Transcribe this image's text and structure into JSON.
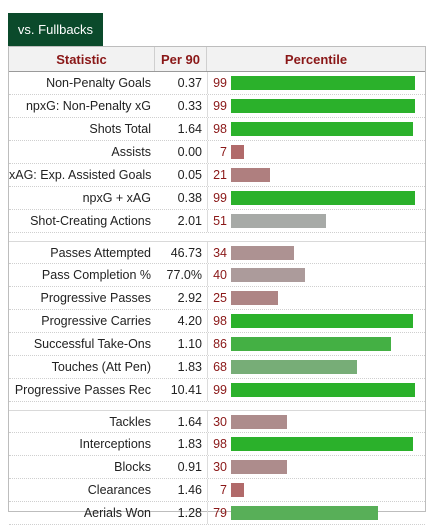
{
  "tab": {
    "label": "vs. Fullbacks"
  },
  "header": {
    "statistic": "Statistic",
    "per90": "Per 90",
    "percentile": "Percentile"
  },
  "colors": {
    "high": "#2bb12b",
    "mid": "#aaaaaa",
    "low": "#b26060"
  },
  "groups": [
    [
      {
        "stat": "Non-Penalty Goals",
        "per90": "0.37",
        "pct": 99
      },
      {
        "stat": "npxG: Non-Penalty xG",
        "per90": "0.33",
        "pct": 99
      },
      {
        "stat": "Shots Total",
        "per90": "1.64",
        "pct": 98
      },
      {
        "stat": "Assists",
        "per90": "0.00",
        "pct": 7
      },
      {
        "stat": "xAG: Exp. Assisted Goals",
        "per90": "0.05",
        "pct": 21
      },
      {
        "stat": "npxG + xAG",
        "per90": "0.38",
        "pct": 99
      },
      {
        "stat": "Shot-Creating Actions",
        "per90": "2.01",
        "pct": 51
      }
    ],
    [
      {
        "stat": "Passes Attempted",
        "per90": "46.73",
        "pct": 34
      },
      {
        "stat": "Pass Completion %",
        "per90": "77.0%",
        "pct": 40
      },
      {
        "stat": "Progressive Passes",
        "per90": "2.92",
        "pct": 25
      },
      {
        "stat": "Progressive Carries",
        "per90": "4.20",
        "pct": 98
      },
      {
        "stat": "Successful Take-Ons",
        "per90": "1.10",
        "pct": 86
      },
      {
        "stat": "Touches (Att Pen)",
        "per90": "1.83",
        "pct": 68
      },
      {
        "stat": "Progressive Passes Rec",
        "per90": "10.41",
        "pct": 99
      }
    ],
    [
      {
        "stat": "Tackles",
        "per90": "1.64",
        "pct": 30
      },
      {
        "stat": "Interceptions",
        "per90": "1.83",
        "pct": 98
      },
      {
        "stat": "Blocks",
        "per90": "0.91",
        "pct": 30
      },
      {
        "stat": "Clearances",
        "per90": "1.46",
        "pct": 7
      },
      {
        "stat": "Aerials Won",
        "per90": "1.28",
        "pct": 79
      }
    ]
  ]
}
